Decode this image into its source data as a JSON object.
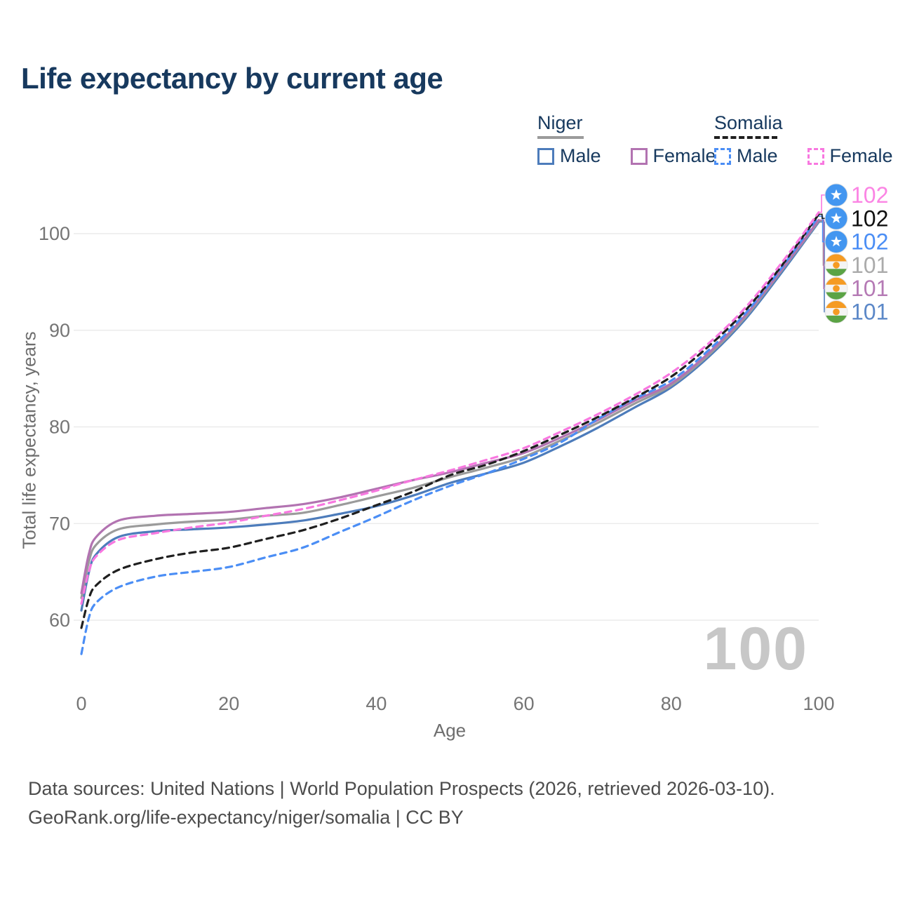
{
  "title": "Life expectancy by current age",
  "watermark": "100",
  "legend": {
    "groups": [
      {
        "label": "Niger",
        "line_color": "#9b9b9b",
        "line_style": "solid",
        "items": [
          {
            "label": "Male",
            "color": "#4d7cbb",
            "style": "solid"
          },
          {
            "label": "Female",
            "color": "#b273b1",
            "style": "solid"
          }
        ]
      },
      {
        "label": "Somalia",
        "line_color": "#1f1f1f",
        "line_style": "dashed",
        "items": [
          {
            "label": "Male",
            "color": "#4b8ef5",
            "style": "dashed"
          },
          {
            "label": "Female",
            "color": "#f878e0",
            "style": "dashed"
          }
        ]
      }
    ]
  },
  "chart_data": {
    "type": "line",
    "title": "Life expectancy by current age",
    "xlabel": "Age",
    "ylabel": "Total life expectancy, years",
    "xlim": [
      0,
      100
    ],
    "ylim": [
      55,
      104
    ],
    "x_ticks": [
      "0",
      "20",
      "40",
      "60",
      "80",
      "100"
    ],
    "x_tick_values": [
      0,
      20,
      40,
      60,
      80,
      100
    ],
    "y_ticks": [
      "60",
      "70",
      "80",
      "90",
      "100"
    ],
    "y_tick_values": [
      60,
      70,
      80,
      90,
      100
    ],
    "grid": "horizontal",
    "legend_position": "top-right",
    "x": [
      0,
      1,
      2,
      5,
      10,
      15,
      20,
      25,
      30,
      35,
      40,
      45,
      50,
      55,
      60,
      65,
      70,
      75,
      80,
      85,
      90,
      95,
      100
    ],
    "series": [
      {
        "name": "Niger Male",
        "country": "Niger",
        "sex": "Male",
        "color": "#4d7cbb",
        "dashed": false,
        "flag": "niger",
        "end_label": "101",
        "end_label_color": "#5c88c8",
        "end_row": 5,
        "values": [
          61.0,
          64.9,
          66.8,
          68.6,
          69.2,
          69.4,
          69.6,
          69.9,
          70.3,
          71.0,
          71.8,
          72.9,
          74.2,
          75.2,
          76.3,
          78.0,
          79.9,
          82.0,
          84.1,
          87.2,
          91.1,
          96.0,
          101.2
        ]
      },
      {
        "name": "Niger Both sexes",
        "country": "Niger",
        "sex": "Both",
        "color": "#9b9b9b",
        "dashed": false,
        "flag": "niger",
        "end_label": "101",
        "end_label_color": "#ababab",
        "end_row": 3,
        "values": [
          62.3,
          66.0,
          67.8,
          69.4,
          69.9,
          70.2,
          70.4,
          70.8,
          71.1,
          71.9,
          72.8,
          73.7,
          74.8,
          75.8,
          76.9,
          78.6,
          80.4,
          82.4,
          84.3,
          87.4,
          91.3,
          96.2,
          101.3
        ]
      },
      {
        "name": "Niger Female",
        "country": "Niger",
        "sex": "Female",
        "color": "#b273b1",
        "dashed": false,
        "flag": "niger",
        "end_label": "101",
        "end_label_color": "#b57ab5",
        "end_row": 4,
        "values": [
          62.8,
          66.8,
          68.6,
          70.3,
          70.8,
          71.0,
          71.2,
          71.6,
          72.0,
          72.7,
          73.6,
          74.5,
          75.3,
          76.3,
          77.3,
          78.9,
          80.7,
          82.7,
          84.5,
          87.6,
          91.5,
          96.3,
          101.4
        ]
      },
      {
        "name": "Somalia Male",
        "country": "Somalia",
        "sex": "Male",
        "color": "#4b8ef5",
        "dashed": true,
        "flag": "somalia",
        "end_label": "102",
        "end_label_color": "#4b8ef5",
        "end_row": 2,
        "values": [
          56.5,
          60.2,
          61.8,
          63.4,
          64.5,
          65.0,
          65.5,
          66.5,
          67.5,
          69.1,
          70.7,
          72.4,
          73.9,
          75.2,
          76.7,
          78.4,
          80.8,
          82.9,
          84.8,
          87.9,
          91.7,
          96.5,
          101.8
        ]
      },
      {
        "name": "Somalia Both sexes",
        "country": "Somalia",
        "sex": "Both",
        "color": "#1f1f1f",
        "dashed": true,
        "flag": "somalia",
        "end_label": "102",
        "end_label_color": "#111111",
        "end_row": 1,
        "values": [
          59.2,
          62.2,
          63.6,
          65.2,
          66.3,
          67.0,
          67.5,
          68.4,
          69.3,
          70.5,
          71.9,
          73.3,
          75.0,
          76.1,
          77.5,
          79.2,
          81.0,
          83.0,
          85.2,
          88.3,
          92.0,
          96.7,
          102.0
        ]
      },
      {
        "name": "Somalia Female",
        "country": "Somalia",
        "sex": "Female",
        "color": "#f878e0",
        "dashed": true,
        "flag": "somalia",
        "end_label": "102",
        "end_label_color": "#fb85e4",
        "end_row": 0,
        "values": [
          61.7,
          65.0,
          66.6,
          68.3,
          69.0,
          69.6,
          70.1,
          70.8,
          71.5,
          72.4,
          73.4,
          74.5,
          75.5,
          76.6,
          77.8,
          79.5,
          81.3,
          83.3,
          85.6,
          88.6,
          92.3,
          97.0,
          102.2
        ]
      }
    ],
    "flag_colors": {
      "somalia_bg": "#4396f0",
      "somalia_star": "#ffffff",
      "niger_orange": "#f59b23",
      "niger_white": "#f4f4f4",
      "niger_green": "#5ba345"
    },
    "grid_color": "#e8e8e8",
    "tick_color": "#757575"
  },
  "footer": {
    "line1": "Data sources: United Nations | World Population Prospects (2026, retrieved 2026-03-10).",
    "line2": "GeoRank.org/life-expectancy/niger/somalia | CC BY"
  }
}
